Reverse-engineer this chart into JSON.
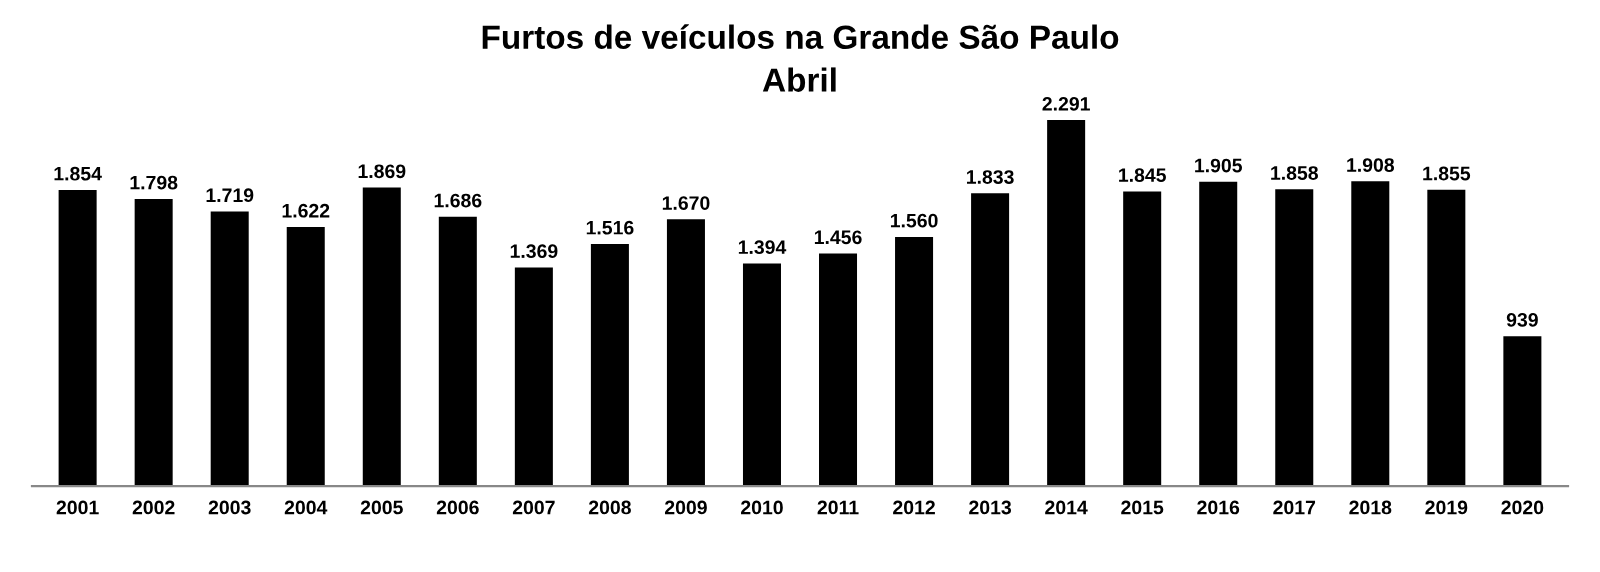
{
  "chart_data": {
    "type": "bar",
    "title": "Furtos de veículos na Grande São Paulo",
    "subtitle": "Abril",
    "categories": [
      "2001",
      "2002",
      "2003",
      "2004",
      "2005",
      "2006",
      "2007",
      "2008",
      "2009",
      "2010",
      "2011",
      "2012",
      "2013",
      "2014",
      "2015",
      "2016",
      "2017",
      "2018",
      "2019",
      "2020"
    ],
    "values": [
      1854,
      1798,
      1719,
      1622,
      1869,
      1686,
      1369,
      1516,
      1670,
      1394,
      1456,
      1560,
      1833,
      2291,
      1845,
      1905,
      1858,
      1908,
      1855,
      939
    ],
    "value_labels": [
      "1.854",
      "1.798",
      "1.719",
      "1.622",
      "1.869",
      "1.686",
      "1.369",
      "1.516",
      "1.670",
      "1.394",
      "1.456",
      "1.560",
      "1.833",
      "2.291",
      "1.845",
      "1.905",
      "1.858",
      "1.908",
      "1.855",
      "939"
    ],
    "color": "#000000",
    "grid": false,
    "legend": false
  }
}
